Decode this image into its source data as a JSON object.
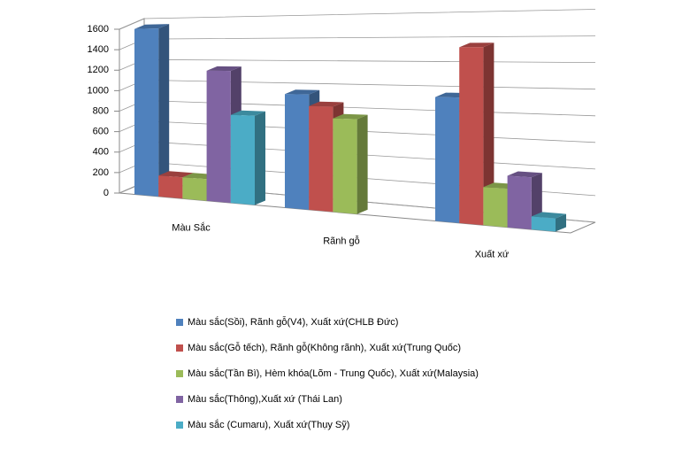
{
  "chart_data": {
    "type": "bar3d",
    "categories": [
      "Màu Sắc",
      "Rãnh gỗ",
      "Xuất xứ"
    ],
    "series": [
      {
        "name": "Màu sắc(Sồi), Rãnh gỗ(V4), Xuất xứ(CHLB Đức)",
        "color": "#4f81bd",
        "values": [
          1600,
          1000,
          1000
        ]
      },
      {
        "name": "Màu sắc(Gỗ tếch),  Rãnh gỗ(Không rãnh), Xuất xứ(Trung Quốc)",
        "color": "#c0504d",
        "values": [
          200,
          900,
          1400
        ]
      },
      {
        "name": "Màu sắc(Tần Bì), Hèm khóa(Lõm - Trung Quốc), Xuất xứ(Malaysia)",
        "color": "#9bbb59",
        "values": [
          200,
          800,
          300
        ]
      },
      {
        "name": "Màu sắc(Thông),Xuất xứ (Thái Lan)",
        "color": "#8064a2",
        "values": [
          1200,
          null,
          400
        ]
      },
      {
        "name": "Màu sắc (Cumaru), Xuất xứ(Thụy Sỹ)",
        "color": "#4bacc6",
        "values": [
          800,
          null,
          100
        ]
      }
    ],
    "ylim": [
      0,
      1600
    ],
    "yticks": [
      0,
      200,
      400,
      600,
      800,
      1000,
      1200,
      1400,
      1600
    ],
    "grid": true
  }
}
